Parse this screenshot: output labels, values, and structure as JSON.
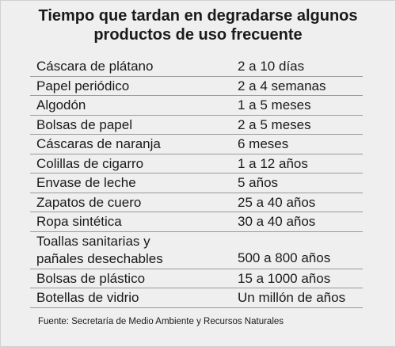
{
  "title_line1": "Tiempo que tardan en degradarse algunos",
  "title_line2": "productos de uso frecuente",
  "rows": [
    {
      "product": "Cáscara de plátano",
      "time": "2 a 10 días"
    },
    {
      "product": "Papel periódico",
      "time": "2 a 4 semanas"
    },
    {
      "product": "Algodón",
      "time": "1 a 5 meses"
    },
    {
      "product": "Bolsas de papel",
      "time": "2 a 5 meses"
    },
    {
      "product": "Cáscaras de naranja",
      "time": "6 meses"
    },
    {
      "product": "Colillas de cigarro",
      "time": "1 a 12 años"
    },
    {
      "product": "Envase de leche",
      "time": "5 años"
    },
    {
      "product": "Zapatos de cuero",
      "time": "25 a 40 años"
    },
    {
      "product": "Ropa sintética",
      "time": "30 a 40 años"
    },
    {
      "product": "Toallas sanitarias y\npañales desechables",
      "time": "500 a 800 años"
    },
    {
      "product": "Bolsas de plástico",
      "time": "15 a 1000 años"
    },
    {
      "product": "Botellas de vidrio",
      "time": "Un millón de años"
    }
  ],
  "source": "Fuente: Secretaría de Medio Ambiente y Recursos Naturales"
}
